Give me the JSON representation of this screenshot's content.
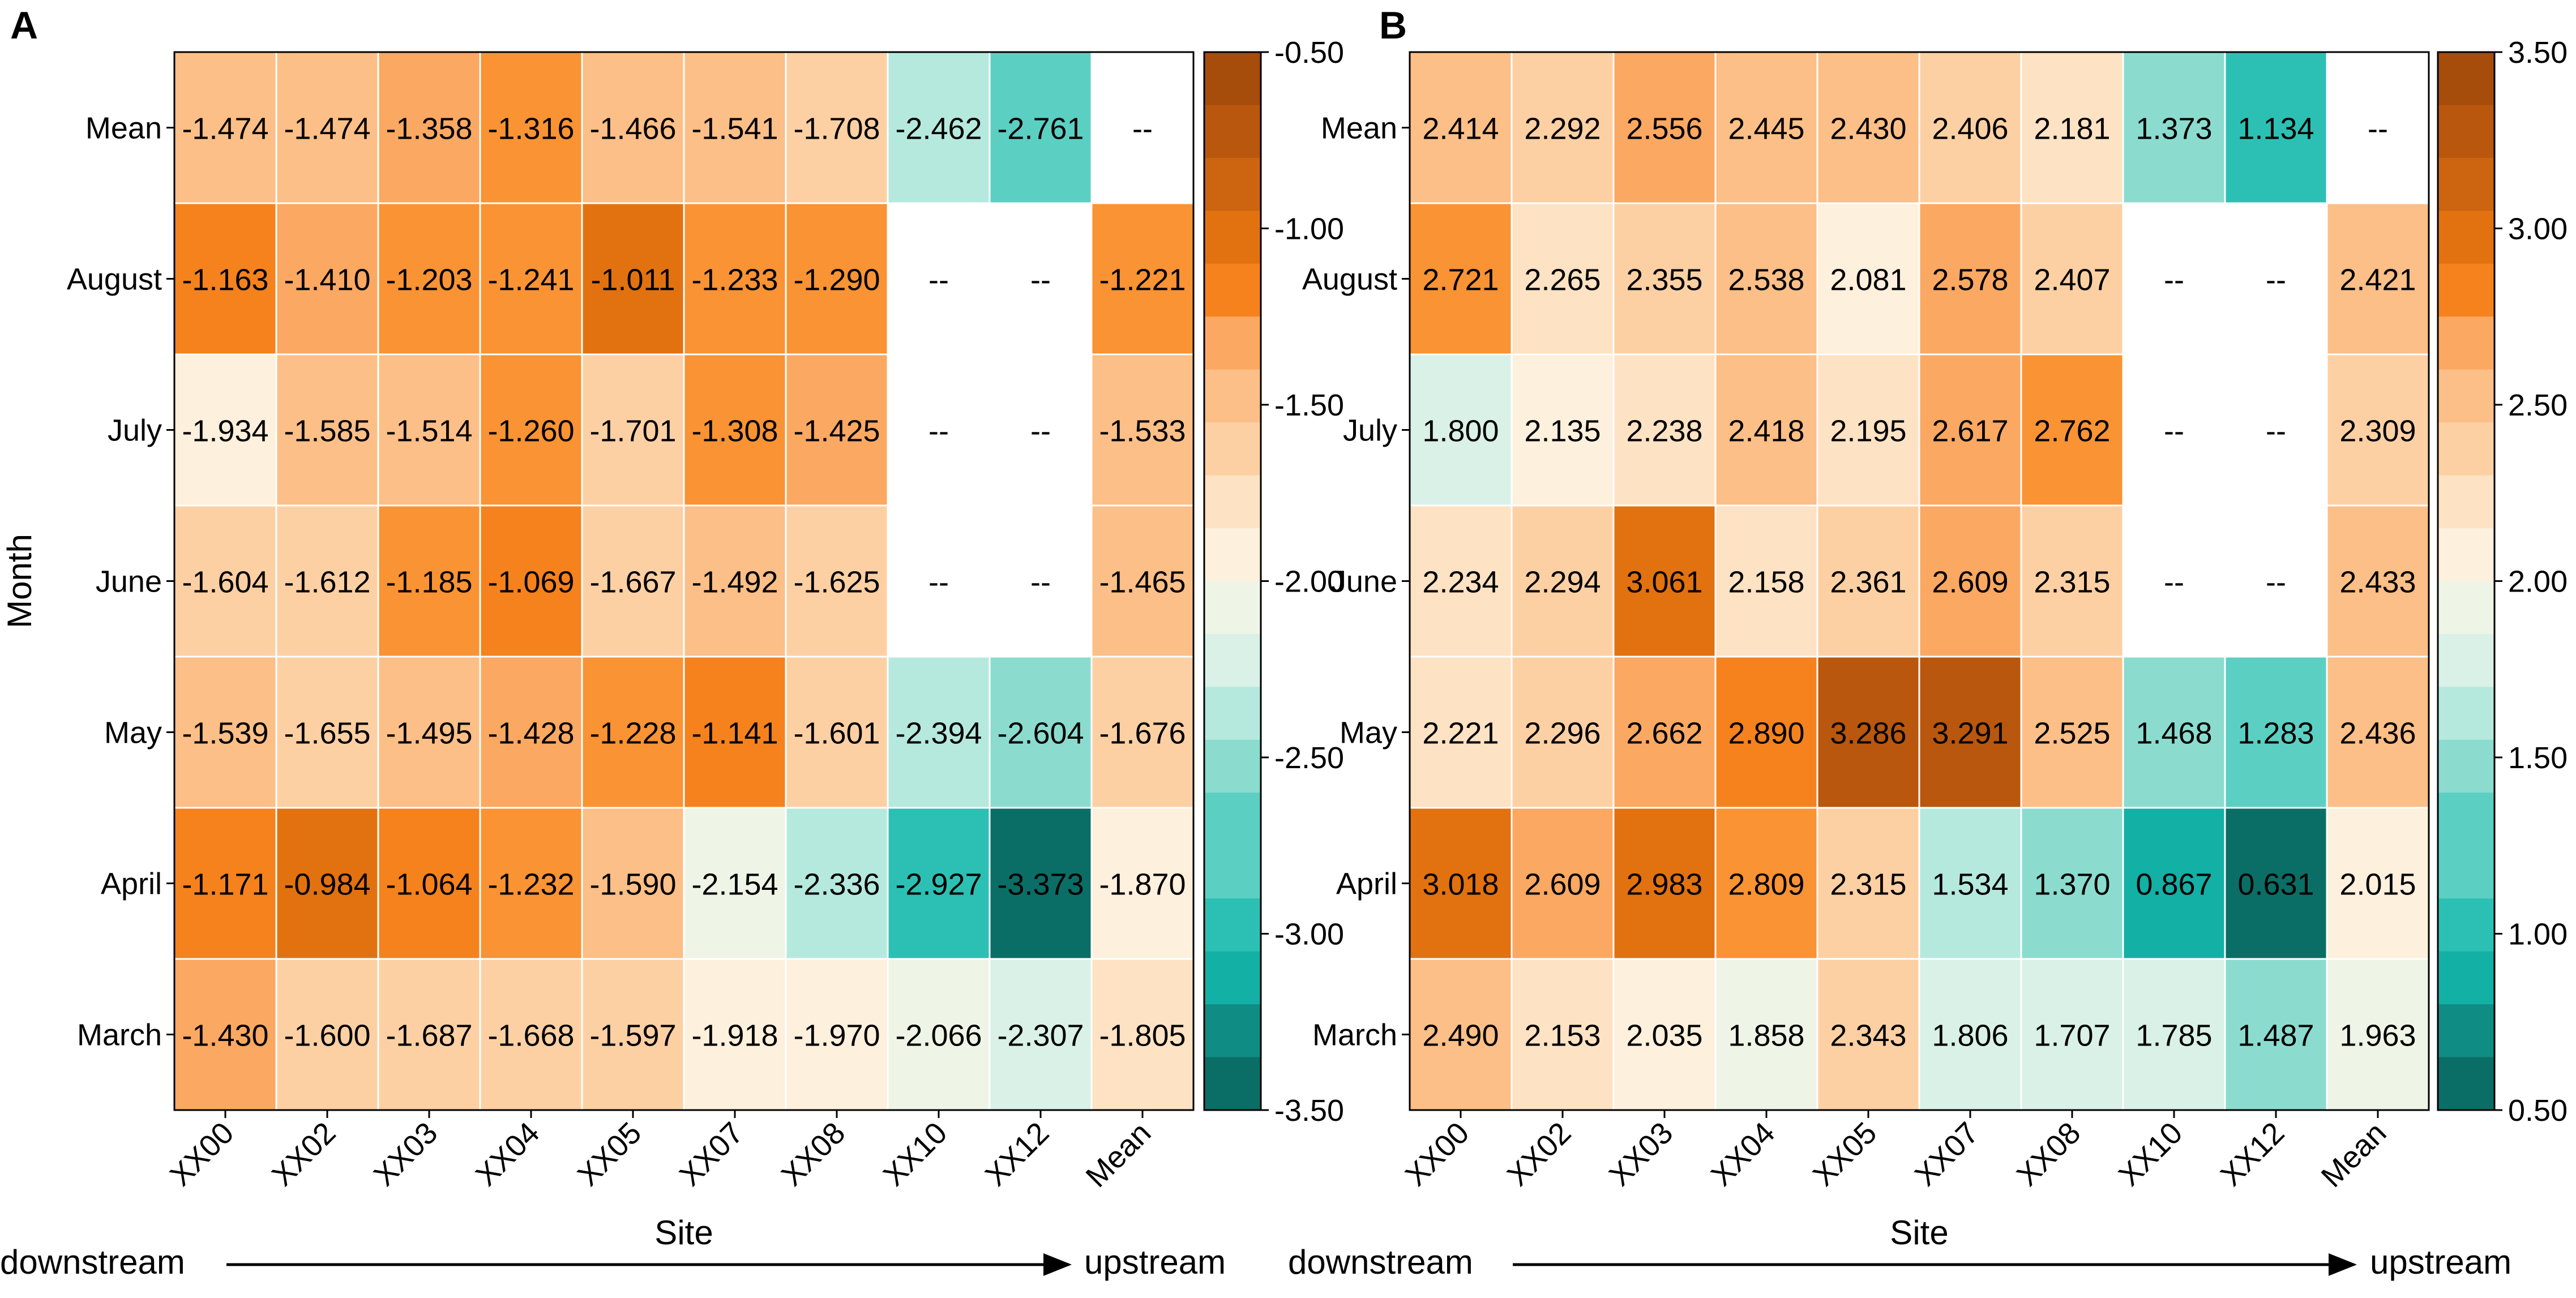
{
  "chart_data": [
    {
      "type": "heatmap",
      "panel_label": "A",
      "xlabel": "Site",
      "ylabel": "Month",
      "x_categories": [
        "XX00",
        "XX02",
        "XX03",
        "XX04",
        "XX05",
        "XX07",
        "XX08",
        "XX10",
        "XX12",
        "Mean"
      ],
      "y_categories": [
        "Mean",
        "August",
        "July",
        "June",
        "May",
        "April",
        "March"
      ],
      "values": [
        [
          "-1.474",
          "-1.474",
          "-1.358",
          "-1.316",
          "-1.466",
          "-1.541",
          "-1.708",
          "-2.462",
          "-2.761",
          "--"
        ],
        [
          "-1.163",
          "-1.410",
          "-1.203",
          "-1.241",
          "-1.011",
          "-1.233",
          "-1.290",
          "--",
          "--",
          "-1.221"
        ],
        [
          "-1.934",
          "-1.585",
          "-1.514",
          "-1.260",
          "-1.701",
          "-1.308",
          "-1.425",
          "--",
          "--",
          "-1.533"
        ],
        [
          "-1.604",
          "-1.612",
          "-1.185",
          "-1.069",
          "-1.667",
          "-1.492",
          "-1.625",
          "--",
          "--",
          "-1.465"
        ],
        [
          "-1.539",
          "-1.655",
          "-1.495",
          "-1.428",
          "-1.228",
          "-1.141",
          "-1.601",
          "-2.394",
          "-2.604",
          "-1.676"
        ],
        [
          "-1.171",
          "-0.984",
          "-1.064",
          "-1.232",
          "-1.590",
          "-2.154",
          "-2.336",
          "-2.927",
          "-3.373",
          "-1.870"
        ],
        [
          "-1.430",
          "-1.600",
          "-1.687",
          "-1.668",
          "-1.597",
          "-1.918",
          "-1.970",
          "-2.066",
          "-2.307",
          "-1.805"
        ]
      ],
      "colorbar": {
        "range": [
          -3.5,
          -0.5
        ],
        "center": -2.0,
        "ticks": [
          "-0.50",
          "-1.00",
          "-1.50",
          "-2.00",
          "-2.50",
          "-3.00",
          "-3.50"
        ]
      },
      "direction": {
        "left": "downstream",
        "right": "upstream"
      }
    },
    {
      "type": "heatmap",
      "panel_label": "B",
      "xlabel": "Site",
      "ylabel": "",
      "x_categories": [
        "XX00",
        "XX02",
        "XX03",
        "XX04",
        "XX05",
        "XX07",
        "XX08",
        "XX10",
        "XX12",
        "Mean"
      ],
      "y_categories": [
        "Mean",
        "August",
        "July",
        "June",
        "May",
        "April",
        "March"
      ],
      "values": [
        [
          "2.414",
          "2.292",
          "2.556",
          "2.445",
          "2.430",
          "2.406",
          "2.181",
          "1.373",
          "1.134",
          "--"
        ],
        [
          "2.721",
          "2.265",
          "2.355",
          "2.538",
          "2.081",
          "2.578",
          "2.407",
          "--",
          "--",
          "2.421"
        ],
        [
          "1.800",
          "2.135",
          "2.238",
          "2.418",
          "2.195",
          "2.617",
          "2.762",
          "--",
          "--",
          "2.309"
        ],
        [
          "2.234",
          "2.294",
          "3.061",
          "2.158",
          "2.361",
          "2.609",
          "2.315",
          "--",
          "--",
          "2.433"
        ],
        [
          "2.221",
          "2.296",
          "2.662",
          "2.890",
          "3.286",
          "3.291",
          "2.525",
          "1.468",
          "1.283",
          "2.436"
        ],
        [
          "3.018",
          "2.609",
          "2.983",
          "2.809",
          "2.315",
          "1.534",
          "1.370",
          "0.867",
          "0.631",
          "2.015"
        ],
        [
          "2.490",
          "2.153",
          "2.035",
          "1.858",
          "2.343",
          "1.806",
          "1.707",
          "1.785",
          "1.487",
          "1.963"
        ]
      ],
      "colorbar": {
        "range": [
          0.5,
          3.5
        ],
        "center": 2.0,
        "ticks": [
          "3.50",
          "3.00",
          "2.50",
          "2.00",
          "1.50",
          "1.00",
          "0.50"
        ]
      },
      "direction": {
        "left": "downstream",
        "right": "upstream"
      }
    }
  ],
  "colors": {
    "scale_low": [
      "#0a6e66",
      "#0f8c84",
      "#13b0a5",
      "#2cc0b4",
      "#5ccfc3",
      "#8bdccf",
      "#b6e9de",
      "#d9f1e7",
      "#eef5e6"
    ],
    "scale_high": [
      "#fdf0dc",
      "#fde2c3",
      "#fdd0a4",
      "#fcbf87",
      "#fba862",
      "#f99333",
      "#f5821d",
      "#e2720f",
      "#cc6410",
      "#b8570d",
      "#a64d0c"
    ],
    "grid": "#ffffff",
    "frame": "#000000"
  }
}
